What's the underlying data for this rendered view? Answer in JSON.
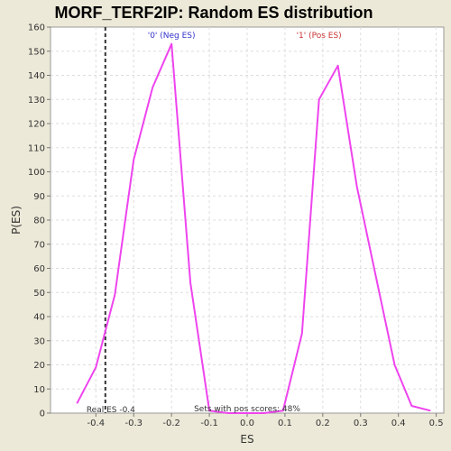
{
  "chart_data": {
    "type": "line",
    "title": "MORF_TERF2IP: Random ES distribution",
    "xlabel": "ES",
    "ylabel": "P(ES)",
    "xlim": [
      -0.52,
      0.52
    ],
    "ylim": [
      0,
      160
    ],
    "xticks": [
      -0.4,
      -0.3,
      -0.2,
      -0.1,
      0.0,
      0.1,
      0.2,
      0.3,
      0.4,
      0.5
    ],
    "xtick_labels": [
      "-0.4",
      "-0.3",
      "-0.2",
      "-0.1",
      "0.0",
      "0.1",
      "0.2",
      "0.3",
      "0.4",
      "0.5"
    ],
    "yticks": [
      0,
      10,
      20,
      30,
      40,
      50,
      60,
      70,
      80,
      90,
      100,
      110,
      120,
      130,
      140,
      150,
      160
    ],
    "grid": true,
    "line_color": "#ee44ee",
    "series": [
      {
        "name": "",
        "x": [
          -0.45,
          -0.4,
          -0.35,
          -0.3,
          -0.25,
          -0.2,
          -0.15,
          -0.1,
          -0.05,
          0.0,
          0.045,
          0.095,
          0.145,
          0.19,
          0.24,
          0.29,
          0.34,
          0.39,
          0.435,
          0.485
        ],
        "y": [
          4,
          19,
          49,
          105,
          135,
          153,
          54,
          1,
          0,
          0,
          0,
          1,
          33,
          130,
          144,
          94,
          57,
          20,
          3,
          1
        ]
      }
    ],
    "annotations": {
      "neg_label": "'0' (Neg ES)",
      "neg_color": "#3333cc",
      "pos_label": "'1' (Pos ES)",
      "pos_color": "#cc3333",
      "real_es_label": "Real ES -0.4",
      "real_es_value": -0.375,
      "pos_scores_label": "Sets with pos scores: 48%"
    }
  }
}
